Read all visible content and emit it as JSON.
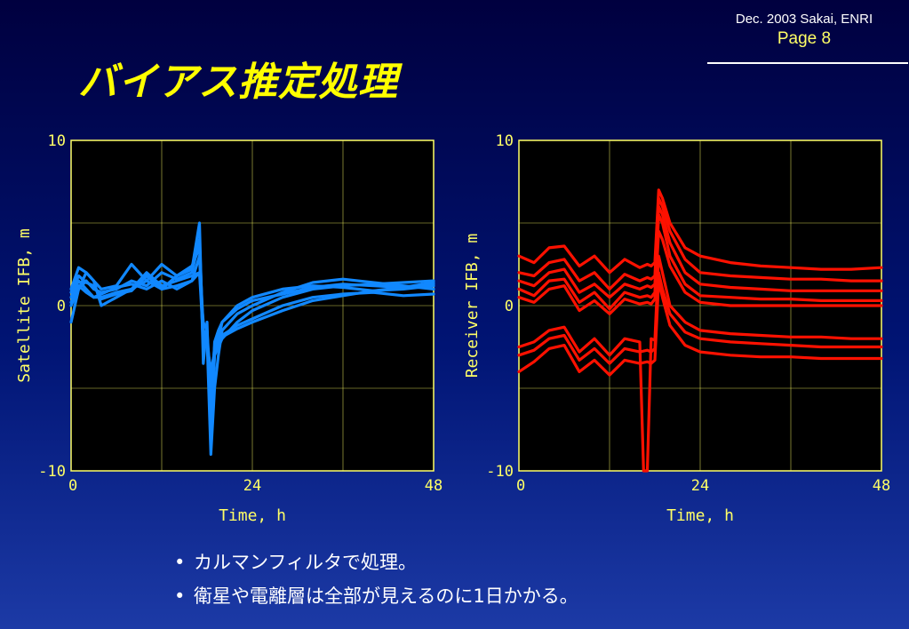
{
  "header": {
    "date_author": "Dec. 2003 Sakai, ENRI",
    "page_label": "Page 8"
  },
  "slide_title": "バイアス推定処理",
  "colors": {
    "satellite_series": "#1188ff",
    "receiver_series": "#ff1100",
    "axis": "#ffff66"
  },
  "bullets": [
    "カルマンフィルタで処理。",
    "衛星や電離層は全部が見えるのに1日かかる。"
  ],
  "chart_data": [
    {
      "type": "line",
      "ylabel": "Satellite IFB, m",
      "xlabel": "Time, h",
      "xlim": [
        0,
        48
      ],
      "ylim": [
        -10,
        10
      ],
      "xticks": [
        "0",
        "24",
        "48"
      ],
      "yticks": [
        "10",
        "0",
        "-10"
      ],
      "grid": true,
      "color": "#1188ff",
      "series": [
        {
          "x": [
            0,
            1,
            2,
            3,
            4,
            6,
            8,
            10,
            12,
            14,
            16,
            17,
            17.5,
            18,
            18.5,
            19,
            19.5,
            20,
            22,
            24,
            28,
            32,
            36,
            40,
            44,
            48
          ],
          "y": [
            -1,
            1,
            2,
            1.5,
            1,
            1.2,
            2.5,
            1.5,
            2.5,
            1.8,
            2.2,
            5,
            -3.5,
            -1,
            -8,
            -3,
            -2,
            -1,
            0,
            0.5,
            1,
            1.2,
            1.1,
            0.9,
            1,
            1.2
          ]
        },
        {
          "x": [
            0,
            1,
            2,
            3,
            4,
            6,
            8,
            10,
            12,
            14,
            16,
            17,
            17.5,
            18,
            18.5,
            19,
            19.5,
            20,
            22,
            24,
            28,
            32,
            36,
            40,
            44,
            48
          ],
          "y": [
            0.5,
            1.5,
            1,
            0.5,
            0.5,
            0.8,
            1,
            2,
            1.2,
            1.5,
            1.8,
            2,
            -2,
            -2,
            -9,
            -5,
            -3,
            -1.5,
            -0.5,
            0,
            0.8,
            1.4,
            1.6,
            1.4,
            1.2,
            1
          ]
        },
        {
          "x": [
            0,
            1,
            2,
            3,
            4,
            6,
            8,
            10,
            12,
            14,
            16,
            17,
            17.5,
            18,
            18.5,
            19,
            19.5,
            20,
            22,
            24,
            28,
            32,
            36,
            40,
            44,
            48
          ],
          "y": [
            0,
            1,
            1.5,
            1,
            0.8,
            1,
            1.5,
            1.2,
            2,
            1.6,
            2,
            4,
            -2,
            -2,
            -6,
            -3,
            -2.5,
            -2,
            -1,
            -0.3,
            0.5,
            1,
            1.2,
            1.3,
            1.4,
            1.5
          ]
        },
        {
          "x": [
            0,
            1,
            2,
            3,
            4,
            6,
            8,
            10,
            12,
            14,
            16,
            17,
            17.5,
            18,
            18.5,
            19,
            19.5,
            20,
            22,
            24,
            28,
            32,
            36,
            40,
            44,
            48
          ],
          "y": [
            1,
            2.3,
            2,
            1.5,
            0,
            0.5,
            1,
            1.5,
            1,
            1.2,
            1.5,
            2,
            -1,
            -1.5,
            -5,
            -2.5,
            -2,
            -1.8,
            -1.2,
            -0.8,
            0,
            0.5,
            0.7,
            0.8,
            0.6,
            0.7
          ]
        },
        {
          "x": [
            0,
            1,
            2,
            3,
            4,
            6,
            8,
            10,
            12,
            14,
            16,
            17,
            17.5,
            18,
            18.5,
            19,
            19.5,
            20,
            22,
            24,
            28,
            32,
            36,
            40,
            44,
            48
          ],
          "y": [
            0.2,
            1.2,
            0.8,
            0.5,
            0.7,
            1.1,
            1.3,
            1,
            1.5,
            1,
            1.5,
            3,
            -2.5,
            -1.5,
            -7,
            -2.2,
            -1.5,
            -1,
            -0.2,
            0.3,
            0.7,
            1.1,
            1.3,
            1.2,
            1.1,
            1.3
          ]
        },
        {
          "x": [
            0,
            1,
            2,
            3,
            4,
            6,
            8,
            10,
            12,
            14,
            16,
            17,
            17.5,
            18,
            18.5,
            19,
            19.5,
            20,
            22,
            24,
            28,
            32,
            36,
            40,
            44,
            48
          ],
          "y": [
            0.8,
            1.8,
            1.4,
            1.2,
            0.4,
            0.7,
            0.9,
            1.8,
            1,
            1.8,
            2.4,
            3.5,
            -1.5,
            -2.2,
            -4,
            -2.8,
            -2.2,
            -1.9,
            -1.4,
            -1,
            -0.3,
            0.3,
            0.6,
            0.9,
            1.1,
            1.4
          ]
        }
      ]
    },
    {
      "type": "line",
      "ylabel": "Receiver IFB, m",
      "xlabel": "Time, h",
      "xlim": [
        0,
        48
      ],
      "ylim": [
        -10,
        10
      ],
      "xticks": [
        "0",
        "24",
        "48"
      ],
      "yticks": [
        "10",
        "0",
        "-10"
      ],
      "grid": true,
      "color": "#ff1100",
      "series": [
        {
          "x": [
            0,
            2,
            4,
            6,
            8,
            10,
            12,
            14,
            16,
            17,
            17.5,
            18,
            18.5,
            19,
            20,
            22,
            24,
            28,
            32,
            36,
            40,
            44,
            48
          ],
          "y": [
            3,
            2.6,
            3.5,
            3.6,
            2.4,
            3,
            2,
            2.8,
            2.3,
            2.5,
            2.4,
            2.6,
            7,
            6.5,
            5,
            3.5,
            3,
            2.6,
            2.4,
            2.3,
            2.2,
            2.2,
            2.3
          ]
        },
        {
          "x": [
            0,
            2,
            4,
            6,
            8,
            10,
            12,
            14,
            16,
            17,
            17.5,
            18,
            18.5,
            19,
            20,
            22,
            24,
            28,
            32,
            36,
            40,
            44,
            48
          ],
          "y": [
            2,
            1.8,
            2.6,
            2.8,
            1.5,
            2,
            1,
            1.9,
            1.5,
            1.7,
            1.6,
            1.8,
            6.5,
            6,
            4.5,
            2.8,
            2,
            1.8,
            1.7,
            1.6,
            1.6,
            1.5,
            1.5
          ]
        },
        {
          "x": [
            0,
            2,
            4,
            6,
            8,
            10,
            12,
            14,
            16,
            17,
            17.5,
            18,
            18.5,
            19,
            20,
            22,
            24,
            28,
            32,
            36,
            40,
            44,
            48
          ],
          "y": [
            1.5,
            1.2,
            2,
            2.2,
            0.8,
            1.3,
            0.5,
            1.3,
            1,
            1.2,
            1.1,
            1.3,
            6,
            5.5,
            3.8,
            2,
            1.3,
            1.1,
            1,
            0.9,
            0.9,
            0.9,
            0.9
          ]
        },
        {
          "x": [
            0,
            2,
            4,
            6,
            8,
            10,
            12,
            14,
            16,
            17,
            17.5,
            18,
            18.5,
            19,
            20,
            22,
            24,
            28,
            32,
            36,
            40,
            44,
            48
          ],
          "y": [
            1,
            0.6,
            1.5,
            1.6,
            0.2,
            0.8,
            -0.2,
            0.8,
            0.5,
            0.6,
            0.5,
            0.8,
            5.5,
            5,
            3,
            1.3,
            0.6,
            0.5,
            0.4,
            0.4,
            0.3,
            0.3,
            0.3
          ]
        },
        {
          "x": [
            0,
            2,
            4,
            6,
            8,
            10,
            12,
            14,
            16,
            17,
            17.5,
            18,
            18.5,
            19,
            20,
            22,
            24,
            28,
            32,
            36,
            40,
            44,
            48
          ],
          "y": [
            0.5,
            0.2,
            1,
            1.2,
            -0.3,
            0.3,
            -0.5,
            0.4,
            0.1,
            0.2,
            0.1,
            0.4,
            4.5,
            4,
            2.4,
            0.8,
            0.2,
            0,
            0,
            0,
            0,
            0,
            0
          ]
        },
        {
          "x": [
            0,
            2,
            4,
            6,
            8,
            10,
            12,
            14,
            16,
            16.5,
            17,
            17.5,
            18,
            18.5,
            19,
            20,
            22,
            24,
            28,
            32,
            36,
            40,
            44,
            48
          ],
          "y": [
            -2.5,
            -2.2,
            -1.5,
            -1.3,
            -2.8,
            -2,
            -3,
            -2,
            -2.2,
            -10,
            -10,
            -2,
            -2.1,
            3,
            2,
            0,
            -1,
            -1.5,
            -1.7,
            -1.8,
            -1.9,
            -1.9,
            -2,
            -2
          ]
        },
        {
          "x": [
            0,
            2,
            4,
            6,
            8,
            10,
            12,
            14,
            16,
            17,
            17.5,
            18,
            18.5,
            19,
            20,
            22,
            24,
            28,
            32,
            36,
            40,
            44,
            48
          ],
          "y": [
            -3,
            -2.7,
            -2,
            -1.8,
            -3.3,
            -2.6,
            -3.5,
            -2.6,
            -2.8,
            -2.7,
            -2.8,
            -2.6,
            2,
            1,
            -0.5,
            -1.6,
            -2,
            -2.2,
            -2.3,
            -2.4,
            -2.5,
            -2.5,
            -2.5
          ]
        },
        {
          "x": [
            0,
            2,
            4,
            6,
            8,
            10,
            12,
            14,
            16,
            17,
            17.5,
            18,
            18.5,
            19,
            20,
            22,
            24,
            28,
            32,
            36,
            40,
            44,
            48
          ],
          "y": [
            -4,
            -3.4,
            -2.6,
            -2.4,
            -4,
            -3.3,
            -4.2,
            -3.3,
            -3.5,
            -3.4,
            -3.5,
            -3.3,
            1.5,
            0.5,
            -1.2,
            -2.4,
            -2.8,
            -3,
            -3.1,
            -3.1,
            -3.2,
            -3.2,
            -3.2
          ]
        }
      ]
    }
  ]
}
